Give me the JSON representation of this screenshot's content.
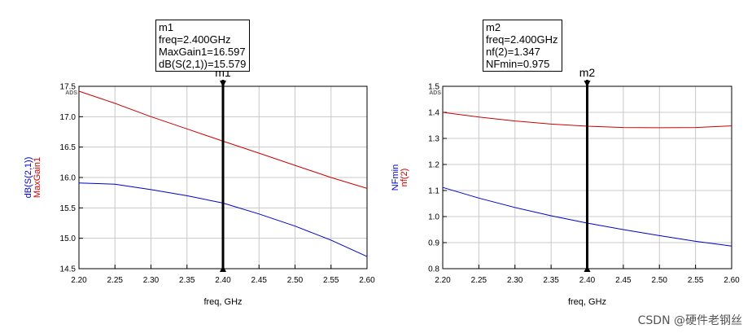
{
  "chart_data": [
    {
      "type": "line",
      "corner_label": "ADS",
      "xlabel": "freq, GHz",
      "x_ticks": [
        "2.20",
        "2.25",
        "2.30",
        "2.35",
        "2.40",
        "2.45",
        "2.50",
        "2.55",
        "2.60"
      ],
      "xlim": [
        2.2,
        2.6
      ],
      "ylim": [
        14.5,
        17.5
      ],
      "y_ticks": [
        "14.5",
        "15.0",
        "15.5",
        "16.0",
        "16.5",
        "17.0",
        "17.5"
      ],
      "ylabels": [
        {
          "text": "dB(S(2,1))",
          "color": "#0000cc"
        },
        {
          "text": "MaxGain1",
          "color": "#cc0000"
        }
      ],
      "grid": true,
      "series": [
        {
          "name": "MaxGain1",
          "color": "#cc0000",
          "x": [
            2.2,
            2.25,
            2.3,
            2.35,
            2.4,
            2.45,
            2.5,
            2.55,
            2.6
          ],
          "y": [
            17.42,
            17.22,
            17.0,
            16.8,
            16.597,
            16.4,
            16.2,
            16.0,
            15.82
          ]
        },
        {
          "name": "dB(S(2,1))",
          "color": "#0000cc",
          "x": [
            2.2,
            2.25,
            2.3,
            2.35,
            2.4,
            2.45,
            2.5,
            2.55,
            2.6
          ],
          "y": [
            15.91,
            15.89,
            15.8,
            15.7,
            15.579,
            15.4,
            15.2,
            14.97,
            14.7
          ]
        }
      ],
      "marker": {
        "name": "m1",
        "x": 2.4,
        "lines": [
          "m1",
          "freq=2.400GHz",
          "MaxGain1=16.597",
          "dB(S(2,1))=15.579"
        ]
      }
    },
    {
      "type": "line",
      "corner_label": "ADS",
      "xlabel": "freq, GHz",
      "x_ticks": [
        "2.20",
        "2.25",
        "2.30",
        "2.35",
        "2.40",
        "2.45",
        "2.50",
        "2.55",
        "2.60"
      ],
      "xlim": [
        2.2,
        2.6
      ],
      "ylim": [
        0.8,
        1.5
      ],
      "y_ticks": [
        "0.8",
        "0.9",
        "1.0",
        "1.1",
        "1.2",
        "1.3",
        "1.4",
        "1.5"
      ],
      "ylabels": [
        {
          "text": "NFmin",
          "color": "#0000cc"
        },
        {
          "text": "nf(2)",
          "color": "#cc0000"
        }
      ],
      "grid": true,
      "series": [
        {
          "name": "nf(2)",
          "color": "#cc0000",
          "x": [
            2.2,
            2.25,
            2.3,
            2.35,
            2.4,
            2.45,
            2.5,
            2.55,
            2.6
          ],
          "y": [
            1.4,
            1.382,
            1.367,
            1.355,
            1.347,
            1.342,
            1.341,
            1.342,
            1.348
          ]
        },
        {
          "name": "NFmin",
          "color": "#0000cc",
          "x": [
            2.2,
            2.25,
            2.3,
            2.35,
            2.4,
            2.45,
            2.5,
            2.55,
            2.6
          ],
          "y": [
            1.112,
            1.071,
            1.035,
            1.003,
            0.975,
            0.95,
            0.927,
            0.905,
            0.887
          ]
        }
      ],
      "marker": {
        "name": "m2",
        "x": 2.4,
        "lines": [
          "m2",
          "freq=2.400GHz",
          "nf(2)=1.347",
          "NFmin=0.975"
        ]
      }
    }
  ],
  "watermark": "CSDN @硬件老钢丝"
}
